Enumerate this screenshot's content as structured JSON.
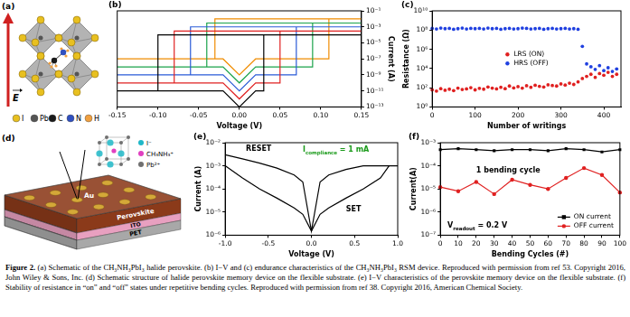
{
  "chart_data": [
    {
      "panel": "(b)",
      "type": "line",
      "x_label": "Voltage (V)",
      "y_label": "Current (A)",
      "log": "y",
      "grid": false,
      "xlim": [
        -0.15,
        0.15
      ],
      "xticks": [
        -0.15,
        {
          "value": -0.1,
          "label": "-0.10"
        },
        -0.05,
        {
          "value": 0,
          "label": "0.00"
        },
        0.05,
        {
          "value": 0.1,
          "label": "0.10"
        },
        0.15
      ],
      "ylim": [
        1e-13,
        0.1
      ],
      "yticks": [
        {
          "value": 1e-13,
          "label": "10⁻¹³"
        },
        {
          "value": 1e-11,
          "label": "10⁻¹¹"
        },
        {
          "value": 1e-09,
          "label": "10⁻⁹"
        },
        {
          "value": 1e-07,
          "label": "10⁻⁷"
        },
        {
          "value": 1e-05,
          "label": "10⁻⁵"
        },
        {
          "value": 0.001,
          "label": "10⁻³"
        },
        {
          "value": 0.1,
          "label": "10⁻¹"
        }
      ],
      "series": [
        {
          "color": "#000000",
          "line_style": "solid",
          "marker": "none",
          "x": [
            -0.15,
            -0.02,
            0,
            0.02,
            0.03,
            0.03,
            0.15,
            -0.1,
            -0.1,
            -0.15
          ],
          "values": [
            1e-11,
            1e-11,
            1e-13,
            1e-11,
            1e-11,
            0.0001,
            0.0001,
            0.0001,
            1e-11,
            1e-11
          ]
        },
        {
          "color": "#e02020",
          "line_style": "solid",
          "marker": "none",
          "x": [
            -0.15,
            -0.02,
            0,
            0.02,
            0.05,
            0.05,
            0.15,
            -0.08,
            -0.08,
            -0.15
          ],
          "values": [
            1e-10,
            1e-10,
            1e-12,
            1e-10,
            1e-10,
            0.0003,
            0.0003,
            0.0003,
            1e-10,
            1e-10
          ]
        },
        {
          "color": "#2a5bd7",
          "line_style": "solid",
          "marker": "none",
          "x": [
            -0.15,
            -0.02,
            0,
            0.02,
            0.07,
            0.07,
            0.15,
            -0.06,
            -0.06,
            -0.15
          ],
          "values": [
            1e-09,
            1e-09,
            1e-11,
            1e-09,
            1e-09,
            0.001,
            0.001,
            0.001,
            1e-09,
            1e-09
          ]
        },
        {
          "color": "#1aa34a",
          "line_style": "solid",
          "marker": "none",
          "x": [
            -0.15,
            -0.02,
            0,
            0.02,
            0.09,
            0.09,
            0.15,
            -0.04,
            -0.04,
            -0.15
          ],
          "values": [
            1e-08,
            1e-08,
            1e-10,
            1e-08,
            1e-08,
            0.003,
            0.003,
            0.003,
            1e-08,
            1e-08
          ]
        },
        {
          "color": "#f08c00",
          "line_style": "solid",
          "marker": "none",
          "x": [
            -0.15,
            -0.02,
            0,
            0.02,
            0.11,
            0.11,
            0.15,
            -0.03,
            -0.03,
            -0.15
          ],
          "values": [
            1e-07,
            1e-07,
            1e-09,
            1e-07,
            1e-07,
            0.01,
            0.01,
            0.01,
            1e-07,
            1e-07
          ]
        }
      ]
    },
    {
      "panel": "(c)",
      "type": "scatter",
      "x_label": "Number of writings",
      "y_label": "Resistance (Ω)",
      "log": "y",
      "grid": false,
      "legend": "center",
      "xlim": [
        0,
        440
      ],
      "xticks": [
        0,
        100,
        200,
        300,
        400
      ],
      "ylim": [
        1,
        10000000000
      ],
      "yticks": [
        {
          "value": 1,
          "label": "10⁰"
        },
        {
          "value": 100,
          "label": "10²"
        },
        {
          "value": 10000,
          "label": "10⁴"
        },
        {
          "value": 1000000,
          "label": "10⁶"
        },
        {
          "value": 100000000,
          "label": "10⁸"
        },
        {
          "value": 10000000000,
          "label": "10¹⁰"
        }
      ],
      "series": [
        {
          "name": "LRS (ON)",
          "color": "#e02020",
          "marker": "circle",
          "x": [
            0,
            10,
            20,
            30,
            40,
            50,
            60,
            70,
            80,
            90,
            100,
            110,
            120,
            130,
            140,
            150,
            160,
            170,
            180,
            190,
            200,
            210,
            220,
            230,
            240,
            250,
            260,
            270,
            280,
            290,
            300,
            310,
            320,
            330,
            340,
            350,
            360,
            370,
            380,
            390,
            400,
            410,
            420,
            430
          ],
          "values": [
            60,
            45,
            80,
            55,
            70,
            50,
            90,
            65,
            75,
            100,
            60,
            85,
            70,
            120,
            90,
            75,
            110,
            80,
            150,
            95,
            130,
            90,
            160,
            110,
            180,
            140,
            120,
            200,
            170,
            150,
            250,
            190,
            300,
            220,
            400,
            900,
            1500,
            2500,
            1200,
            3000,
            2000,
            4000,
            1500,
            2500
          ]
        },
        {
          "name": "HRS (OFF)",
          "color": "#2040e0",
          "marker": "circle",
          "x": [
            0,
            10,
            20,
            30,
            40,
            50,
            60,
            70,
            80,
            90,
            100,
            110,
            120,
            130,
            140,
            150,
            160,
            170,
            180,
            190,
            200,
            210,
            220,
            230,
            240,
            250,
            260,
            270,
            280,
            290,
            300,
            310,
            320,
            330,
            340,
            350,
            360,
            370,
            380,
            390,
            400,
            410,
            420,
            430
          ],
          "values": [
            150000000,
            130000000,
            160000000,
            140000000,
            150000000,
            120000000,
            140000000,
            160000000,
            130000000,
            150000000,
            140000000,
            150000000,
            130000000,
            160000000,
            140000000,
            150000000,
            120000000,
            140000000,
            150000000,
            130000000,
            140000000,
            160000000,
            150000000,
            130000000,
            140000000,
            150000000,
            120000000,
            140000000,
            150000000,
            130000000,
            140000000,
            150000000,
            130000000,
            140000000,
            120000000,
            2000000,
            30000,
            15000,
            8000,
            20000,
            6000,
            12000,
            5000,
            9000
          ]
        }
      ]
    },
    {
      "panel": "(e)",
      "type": "line",
      "x_label": "Voltage (V)",
      "y_label": "Current (A)",
      "log": "y",
      "grid": false,
      "xlim": [
        -1,
        1
      ],
      "xticks": [
        {
          "value": -1,
          "label": "-1.0"
        },
        -0.5,
        {
          "value": 0,
          "label": "0.0"
        },
        0.5,
        {
          "value": 1,
          "label": "1.0"
        }
      ],
      "ylim": [
        1e-06,
        0.01
      ],
      "yticks": [
        {
          "value": 1e-06,
          "label": "10⁻⁶"
        },
        {
          "value": 1e-05,
          "label": "10⁻⁵"
        },
        {
          "value": 0.0001,
          "label": "10⁻⁴"
        },
        {
          "value": 0.001,
          "label": "10⁻³"
        },
        {
          "value": 0.01,
          "label": "10⁻²"
        }
      ],
      "annotations": [
        {
          "text": "RESET"
        },
        {
          "text": "SET"
        },
        {
          "text": "I",
          "subscript": "compliance",
          "after": " = 1 mA",
          "color": "#1a9a1a"
        }
      ],
      "series": [
        {
          "color": "#000000",
          "line_style": "solid",
          "marker": "none",
          "x": [
            -1,
            -0.8,
            -0.6,
            -0.4,
            -0.2,
            -0.1,
            0,
            0.1,
            0.2,
            0.4,
            0.6,
            0.8,
            1
          ],
          "values": [
            0.003,
            0.002,
            0.0013,
            0.0008,
            0.0004,
            0.0002,
            1.5e-06,
            0.0002,
            0.0004,
            0.0007,
            0.001,
            0.001,
            0.001
          ]
        },
        {
          "color": "#000000",
          "line_style": "solid",
          "marker": "none",
          "x": [
            -1,
            -0.8,
            -0.6,
            -0.4,
            -0.2,
            -0.1,
            0,
            0.1,
            0.2,
            0.4,
            0.6,
            0.8,
            0.9
          ],
          "values": [
            0.001,
            0.0003,
            0.0001,
            4e-05,
            1.5e-05,
            8e-06,
            1.5e-06,
            8e-06,
            1.5e-05,
            4e-05,
            0.0001,
            0.0003,
            0.001
          ]
        }
      ]
    },
    {
      "panel": "(f)",
      "type": "line",
      "x_label": "Bending Cycles (#)",
      "y_label": "Current(A)",
      "log": "y",
      "grid": false,
      "legend": "lower right",
      "xlim": [
        0,
        100
      ],
      "xticks": [
        0,
        10,
        20,
        30,
        40,
        50,
        60,
        70,
        80,
        90,
        100
      ],
      "ylim": [
        1e-07,
        0.001
      ],
      "yticks": [
        {
          "value": 1e-07,
          "label": "10⁻⁷"
        },
        {
          "value": 1e-06,
          "label": "10⁻⁶"
        },
        {
          "value": 1e-05,
          "label": "10⁻⁵"
        },
        {
          "value": 0.0001,
          "label": "10⁻⁴"
        },
        {
          "value": 0.001,
          "label": "10⁻³"
        }
      ],
      "annotations": [
        {
          "text": "V",
          "subscript": "readout",
          "after": " = 0.2 V"
        },
        {
          "text": "1 bending cycle"
        }
      ],
      "series": [
        {
          "name": "ON current",
          "color": "#000000",
          "marker": "square",
          "line_style": "solid",
          "x": [
            0,
            10,
            20,
            30,
            40,
            50,
            60,
            70,
            80,
            90,
            100
          ],
          "values": [
            0.0005,
            0.00055,
            0.0005,
            0.00045,
            0.0005,
            0.0005,
            0.00045,
            0.00055,
            0.0005,
            0.0004,
            0.0005
          ]
        },
        {
          "name": "OFF current",
          "color": "#e02020",
          "marker": "circle",
          "line_style": "solid",
          "x": [
            0,
            10,
            20,
            30,
            40,
            50,
            60,
            70,
            80,
            90,
            100
          ],
          "values": [
            1.2e-05,
            8e-06,
            2e-05,
            6e-06,
            2.5e-05,
            1.5e-05,
            1e-05,
            3e-05,
            8e-05,
            4e-05,
            7e-06
          ]
        }
      ]
    }
  ],
  "diagrams": {
    "a": {
      "panel": "(a)",
      "field_label": "E",
      "atoms": [
        {
          "label": "I",
          "color": "#e8c020"
        },
        {
          "label": "Pb",
          "color": "#555555"
        },
        {
          "label": "C",
          "color": "#1a1a1a"
        },
        {
          "label": "N",
          "color": "#3050c0"
        },
        {
          "label": "H",
          "color": "#f0a040"
        }
      ]
    },
    "d": {
      "panel": "(d)",
      "layers": [
        {
          "label": "Au",
          "color": "#d4a838"
        },
        {
          "label": "Perovskite",
          "color": "#8b3a1a"
        },
        {
          "label": "ITO",
          "color": "#e8a0c0"
        },
        {
          "label": "PET",
          "color": "#a8a8a8"
        }
      ],
      "ions": [
        {
          "label": "I⁻",
          "color": "#20b8c8"
        },
        {
          "label": "CH₃NH₃⁺",
          "color": "#e040c0"
        },
        {
          "label": "Pb²⁺",
          "color": "#707070"
        }
      ]
    }
  },
  "caption": {
    "label": "Figure 2.",
    "text": "(a) Schematic of the CH₃NH₃PbI₃ halide perovskite. (b) I−V and (c) endurance characteristics of the CH₃NH₃PbI₃ RSM device. Reproduced with permission from ref 53. Copyright 2016, John Wiley & Sons, Inc. (d) Schematic structure of halide perovskite memory device on the flexible substrate. (e) I−V characteristics of the perovskite memory device on the flexible substrate. (f) Stability of resistance in “on” and “off” states under repetitive bending cycles. Reproduced with permission from ref 38. Copyright 2016, American Chemical Society."
  }
}
